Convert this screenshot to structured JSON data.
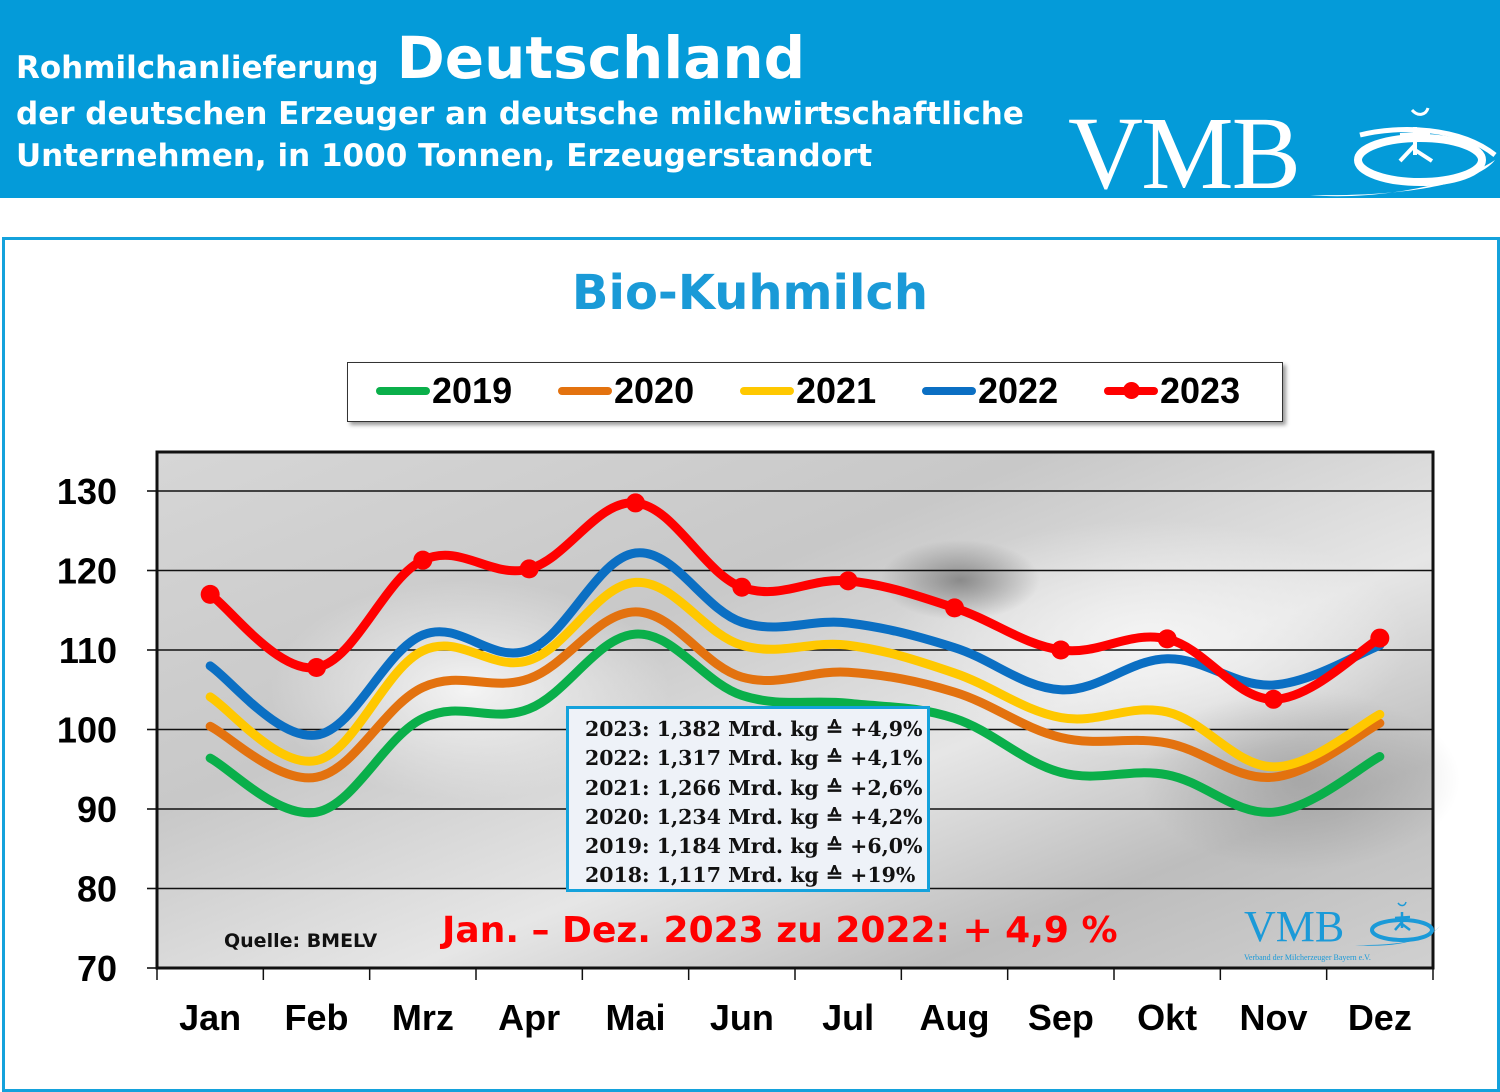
{
  "header": {
    "title_prefix": "Rohmilchanlieferung",
    "title_main": "Deutschland",
    "subtitle_line1": "der deutschen Erzeuger an deutsche milchwirtschaftliche",
    "subtitle_line2": "Unternehmen, in 1000 Tonnen, Erzeugerstandort",
    "logo_text": "VMB"
  },
  "colors": {
    "banner": "#049bd9",
    "title": "#1a9ad7",
    "2019": "#0aaf4a",
    "2020": "#e3720f",
    "2021": "#ffc800",
    "2022": "#0b6fc3",
    "2023": "#ff0000"
  },
  "infobox": {
    "lines": [
      "2023: 1,382 Mrd. kg ≙ +4,9%",
      "2022: 1,317 Mrd. kg ≙ +4,1%",
      "2021: 1,266 Mrd. kg ≙ +2,6%",
      "2020: 1,234 Mrd. kg ≙ +4,2%",
      "2019: 1,184 Mrd. kg ≙ +6,0%",
      "2018: 1,117 Mrd. kg ≙ +19%"
    ]
  },
  "source_label": "Quelle: BMELV",
  "summary_text": "Jan. – Dez. 2023 zu 2022: + 4,9 %",
  "watermark_logo": {
    "text": "VMB",
    "subtext": "Verband der Milcherzeuger Bayern e.V."
  },
  "chart_data": {
    "type": "line",
    "title": "Bio-Kuhmilch",
    "xlabel": "",
    "ylabel": "",
    "categories": [
      "Jan",
      "Feb",
      "Mrz",
      "Apr",
      "Mai",
      "Jun",
      "Jul",
      "Aug",
      "Sep",
      "Okt",
      "Nov",
      "Dez"
    ],
    "ylim": [
      70,
      130
    ],
    "yticks": [
      70,
      80,
      90,
      100,
      110,
      120,
      130
    ],
    "grid": true,
    "legend_position": "top",
    "series": [
      {
        "name": "2019",
        "color": "#0aaf4a",
        "markers": false,
        "values": [
          96.4,
          89.6,
          101.4,
          102.6,
          112.0,
          104.3,
          103.3,
          101.4,
          94.6,
          94.3,
          89.6,
          96.6
        ]
      },
      {
        "name": "2020",
        "color": "#e3720f",
        "markers": false,
        "values": [
          100.4,
          94.0,
          105.3,
          106.4,
          114.8,
          106.6,
          107.2,
          104.7,
          99.0,
          98.3,
          94.0,
          100.8
        ]
      },
      {
        "name": "2021",
        "color": "#ffc800",
        "markers": false,
        "values": [
          104.1,
          96.1,
          109.9,
          108.7,
          118.5,
          110.6,
          110.6,
          107.1,
          101.5,
          102.2,
          95.3,
          101.9
        ]
      },
      {
        "name": "2022",
        "color": "#0b6fc3",
        "markers": false,
        "values": [
          108.0,
          99.3,
          111.9,
          110.0,
          122.2,
          113.5,
          113.4,
          110.3,
          105.0,
          108.9,
          105.6,
          110.6
        ]
      },
      {
        "name": "2023",
        "color": "#ff0000",
        "markers": true,
        "values": [
          117.0,
          107.8,
          121.3,
          120.2,
          128.5,
          117.9,
          118.7,
          115.3,
          110.0,
          111.4,
          103.8,
          111.5
        ]
      }
    ]
  }
}
